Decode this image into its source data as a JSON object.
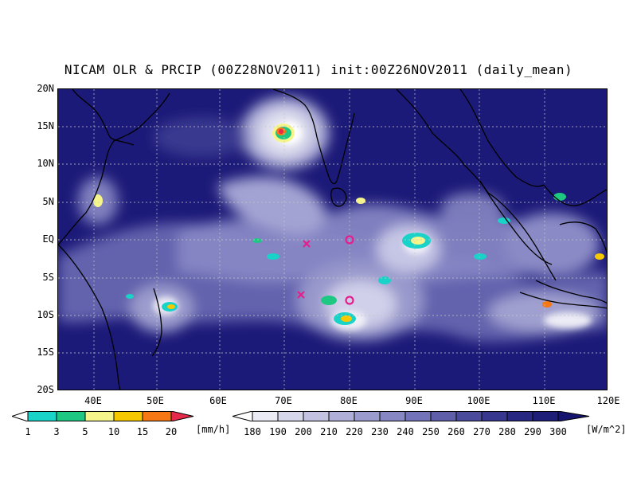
{
  "title": "NICAM OLR & PRCIP (00Z28NOV2011) init:00Z26NOV2011 (daily_mean)",
  "y_ticks": [
    "20N",
    "15N",
    "10N",
    "5N",
    "EQ",
    "5S",
    "10S",
    "15S",
    "20S"
  ],
  "x_ticks": [
    "40E",
    "50E",
    "60E",
    "70E",
    "80E",
    "90E",
    "100E",
    "110E",
    "120E"
  ],
  "precip_scale": {
    "labels": [
      "1",
      "3",
      "5",
      "10",
      "15",
      "20"
    ],
    "unit": "[mm/h]",
    "colors": [
      "#ffffff",
      "#19d2c8",
      "#1ec882",
      "#f5f58c",
      "#f5c800",
      "#f57814",
      "#e6284b"
    ]
  },
  "olr_scale": {
    "labels": [
      "180",
      "190",
      "200",
      "210",
      "220",
      "230",
      "240",
      "250",
      "260",
      "270",
      "280",
      "290",
      "300"
    ],
    "unit": "[W/m^2]",
    "colors": [
      "#ffffff",
      "#ebebf5",
      "#d7d7eb",
      "#c3c3e1",
      "#afafd7",
      "#9b9bcd",
      "#8787c3",
      "#7373b9",
      "#5f5fa9",
      "#4b4b9b",
      "#37378f",
      "#282882",
      "#1e1e78",
      "#14146e"
    ]
  },
  "markers": [
    {
      "type": "x",
      "lon": 73.2,
      "lat": -0.7,
      "color": "#e61e8c"
    },
    {
      "type": "x",
      "lon": 72.6,
      "lat": -7.1,
      "color": "#e61e8c"
    },
    {
      "type": "circle",
      "lon": 79.9,
      "lat": 0.0,
      "color": "#e61e8c"
    },
    {
      "type": "circle",
      "lon": 80.0,
      "lat": -8.0,
      "color": "#e61e8c"
    }
  ]
}
